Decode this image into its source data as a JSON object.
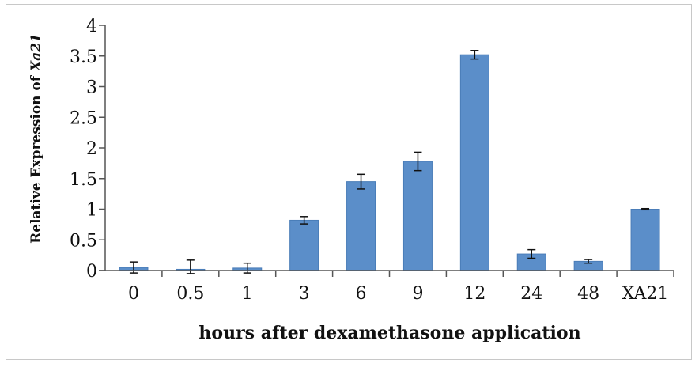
{
  "chart_data": {
    "type": "bar",
    "title": "",
    "xlabel": "hours after dexamethasone application",
    "ylabel": {
      "prefix": "Relative Expression of ",
      "gene": "Xa21"
    },
    "categories": [
      "0",
      "0.5",
      "1",
      "3",
      "6",
      "9",
      "12",
      "24",
      "48",
      "XA21"
    ],
    "series": [
      {
        "values": [
          0.05,
          0.02,
          0.04,
          0.82,
          1.45,
          1.78,
          3.52,
          0.27,
          0.15,
          1.0
        ],
        "errors": [
          0.09,
          0.15,
          0.08,
          0.06,
          0.12,
          0.15,
          0.07,
          0.07,
          0.03,
          0.01
        ]
      }
    ],
    "ylim": [
      0,
      4
    ],
    "yticks": [
      "0",
      "0.5",
      "1",
      "1.5",
      "2",
      "2.5",
      "3",
      "3.5",
      "4"
    ],
    "ytick_values": [
      0,
      0.5,
      1,
      1.5,
      2,
      2.5,
      3,
      3.5,
      4
    ],
    "grid": false,
    "bar_color": "#5b8ec9",
    "bar_edge_color": "#4a7db8"
  }
}
